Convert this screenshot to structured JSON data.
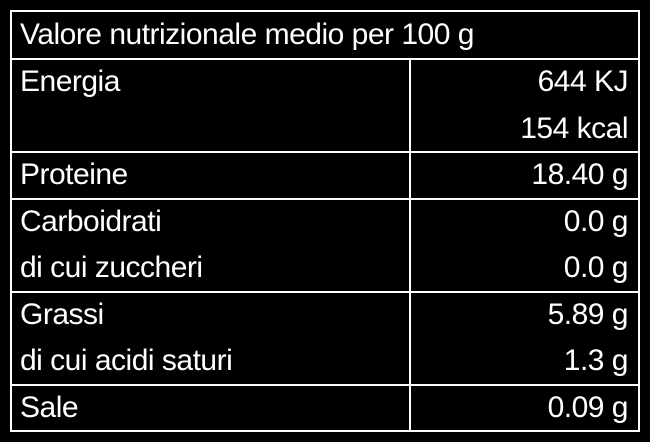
{
  "title": "Valore nutrizionale medio per 100 g",
  "rows": [
    {
      "labels": [
        "Energia"
      ],
      "values": [
        "644 KJ",
        "154 kcal"
      ]
    },
    {
      "labels": [
        "Proteine"
      ],
      "values": [
        "18.40 g"
      ]
    },
    {
      "labels": [
        "Carboidrati",
        "di cui zuccheri"
      ],
      "values": [
        "0.0 g",
        "0.0 g"
      ]
    },
    {
      "labels": [
        "Grassi",
        "di cui acidi saturi"
      ],
      "values": [
        "5.89 g",
        "1.3 g"
      ]
    },
    {
      "labels": [
        "Sale"
      ],
      "values": [
        "0.09 g"
      ]
    }
  ]
}
